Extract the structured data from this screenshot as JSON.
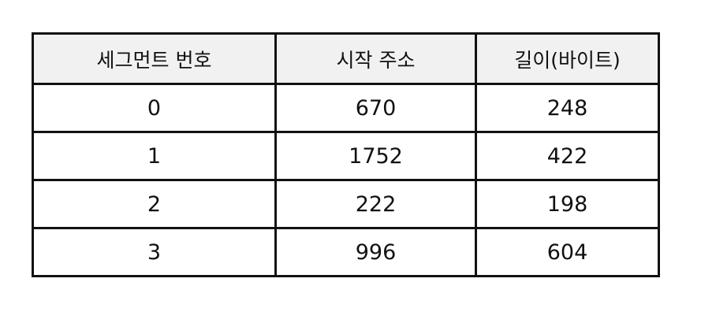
{
  "table": {
    "headers": [
      "세그먼트 번호",
      "시작 주소",
      "길이(바이트)"
    ],
    "rows": [
      [
        "0",
        "670",
        "248"
      ],
      [
        "1",
        "1752",
        "422"
      ],
      [
        "2",
        "222",
        "198"
      ],
      [
        "3",
        "996",
        "604"
      ]
    ]
  }
}
